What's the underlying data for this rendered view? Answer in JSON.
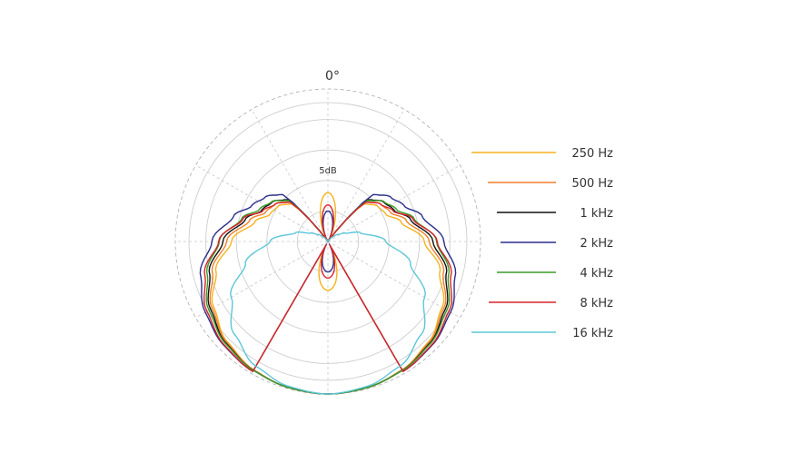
{
  "chart_data": {
    "type": "polar",
    "angle_label": "0°",
    "ring_label": "5dB",
    "grid": true,
    "legend_position": "right",
    "series": [
      {
        "name": "250 Hz",
        "color": "#f5b21e",
        "rear_lobe_db": 8,
        "r_db": [
          25,
          24.8,
          24.3,
          23.3,
          21.6,
          19.0,
          15.8,
          12.4,
          10.5,
          10.0,
          8.8,
          0,
          8
        ]
      },
      {
        "name": "500 Hz",
        "color": "#f07f2a",
        "rear_lobe_db": 0,
        "r_db": [
          25,
          24.8,
          24.3,
          23.4,
          21.9,
          19.6,
          16.6,
          13.3,
          11.3,
          10.6,
          9.3,
          0,
          0
        ]
      },
      {
        "name": "1 kHz",
        "color": "#111111",
        "rear_lobe_db": 0,
        "r_db": [
          25,
          24.8,
          24.4,
          23.6,
          22.2,
          20.1,
          17.2,
          14.0,
          12.0,
          11.2,
          9.8,
          0,
          0
        ]
      },
      {
        "name": "2 kHz",
        "color": "#2b2f8a",
        "rear_lobe_db": 5,
        "r_db": [
          25,
          24.9,
          24.6,
          24.1,
          23.2,
          21.6,
          19.0,
          16.0,
          13.8,
          12.6,
          11.0,
          0,
          5
        ]
      },
      {
        "name": "4 kHz",
        "color": "#3c9a2a",
        "rear_lobe_db": 0,
        "r_db": [
          25,
          24.8,
          24.4,
          23.7,
          22.5,
          20.5,
          17.8,
          14.6,
          12.4,
          11.3,
          9.6,
          0,
          0
        ]
      },
      {
        "name": "8 kHz",
        "color": "#d6242a",
        "rear_lobe_db": 6,
        "r_db": [
          25,
          24.9,
          24.6,
          24.0,
          22.9,
          20.9,
          17.9,
          14.4,
          11.8,
          10.6,
          9.2,
          0,
          6
        ]
      },
      {
        "name": "16 kHz",
        "color": "#5cc6d8",
        "rear_lobe_db": 0,
        "r_db": [
          25,
          24.6,
          23.6,
          21.6,
          18.3,
          14.0,
          9.5,
          5.5,
          3.2,
          2.0,
          1.0,
          0,
          0
        ]
      }
    ],
    "angles_deg": [
      0,
      15,
      30,
      45,
      60,
      75,
      90,
      105,
      115,
      125,
      135,
      145,
      180
    ],
    "r_range_db": [
      0,
      25
    ]
  },
  "legend": {
    "items": [
      "250 Hz",
      "500 Hz",
      "1 kHz",
      "2 kHz",
      "4 kHz",
      "8 kHz",
      "16 kHz"
    ]
  }
}
